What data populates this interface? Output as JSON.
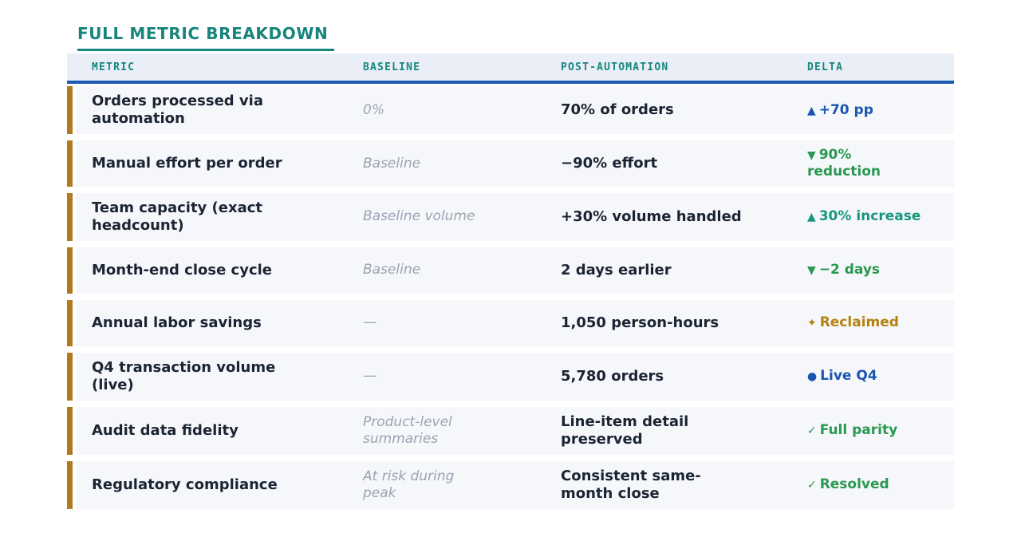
{
  "title": "FULL METRIC BREAKDOWN",
  "colors": {
    "title_teal": "#17857b",
    "header_bg": "#eaeef7",
    "header_text": "#17867d",
    "header_border_blue": "#1d5ab1",
    "row_bg": "#f6f7fb",
    "row_accent_amber": "#b1791d",
    "text_dark": "#1b2433",
    "baseline_gray": "#9aa3b2",
    "delta_blue": "#1a56b0",
    "delta_green": "#28994f",
    "delta_teal": "#17967d",
    "delta_amber": "#b5810e"
  },
  "table": {
    "columns": [
      "METRIC",
      "BASELINE",
      "POST-AUTOMATION",
      "DELTA"
    ],
    "rows": [
      {
        "metric": "Orders processed via\nautomation",
        "baseline": "0%",
        "post": "70% of orders",
        "delta_icon": "▲",
        "delta": "+70 pp",
        "delta_color": "blue",
        "delta_icon_name": "up-triangle-icon"
      },
      {
        "metric": "Manual effort per order",
        "baseline": "Baseline",
        "post": "−90% effort",
        "delta_icon": "▼",
        "delta": "90%\nreduction",
        "delta_color": "green",
        "delta_icon_name": "down-triangle-icon"
      },
      {
        "metric": "Team capacity (exact\nheadcount)",
        "baseline": "Baseline volume",
        "post": "+30% volume handled",
        "delta_icon": "▲",
        "delta": "30% increase",
        "delta_color": "teal",
        "delta_icon_name": "up-triangle-icon"
      },
      {
        "metric": "Month-end close cycle",
        "baseline": "Baseline",
        "post": "2 days earlier",
        "delta_icon": "▼",
        "delta": "−2 days",
        "delta_color": "green",
        "delta_icon_name": "down-triangle-icon"
      },
      {
        "metric": "Annual labor savings",
        "baseline": "—",
        "post": "1,050 person-hours",
        "delta_icon": "✦",
        "delta": "Reclaimed",
        "delta_color": "amber",
        "delta_icon_name": "sparkle-icon"
      },
      {
        "metric": "Q4 transaction volume\n(live)",
        "baseline": "—",
        "post": "5,780 orders",
        "delta_icon": "●",
        "delta": "Live Q4",
        "delta_color": "blue",
        "delta_icon_name": "dot-icon"
      },
      {
        "metric": "Audit data fidelity",
        "baseline": "Product-level\nsummaries",
        "post": "Line-item detail\npreserved",
        "delta_icon": "✓",
        "delta": "Full parity",
        "delta_color": "green",
        "delta_icon_name": "check-icon"
      },
      {
        "metric": "Regulatory compliance",
        "baseline": "At risk during\npeak",
        "post": "Consistent same-\nmonth close",
        "delta_icon": "✓",
        "delta": "Resolved",
        "delta_color": "green",
        "delta_icon_name": "check-icon"
      }
    ]
  },
  "chart_data": {
    "type": "table",
    "title": "FULL METRIC BREAKDOWN",
    "columns": [
      "METRIC",
      "BASELINE",
      "POST-AUTOMATION",
      "DELTA"
    ],
    "rows": [
      [
        "Orders processed via automation",
        "0%",
        "70% of orders",
        "▲ +70 pp"
      ],
      [
        "Manual effort per order",
        "Baseline",
        "−90% effort",
        "▼ 90% reduction"
      ],
      [
        "Team capacity (exact headcount)",
        "Baseline volume",
        "+30% volume handled",
        "▲ 30% increase"
      ],
      [
        "Month-end close cycle",
        "Baseline",
        "2 days earlier",
        "▼ −2 days"
      ],
      [
        "Annual labor savings",
        "—",
        "1,050 person-hours",
        "✦ Reclaimed"
      ],
      [
        "Q4 transaction volume (live)",
        "—",
        "5,780 orders",
        "● Live Q4"
      ],
      [
        "Audit data fidelity",
        "Product-level summaries",
        "Line-item detail preserved",
        "✓ Full parity"
      ],
      [
        "Regulatory compliance",
        "At risk during peak",
        "Consistent same-month close",
        "✓ Resolved"
      ]
    ]
  }
}
